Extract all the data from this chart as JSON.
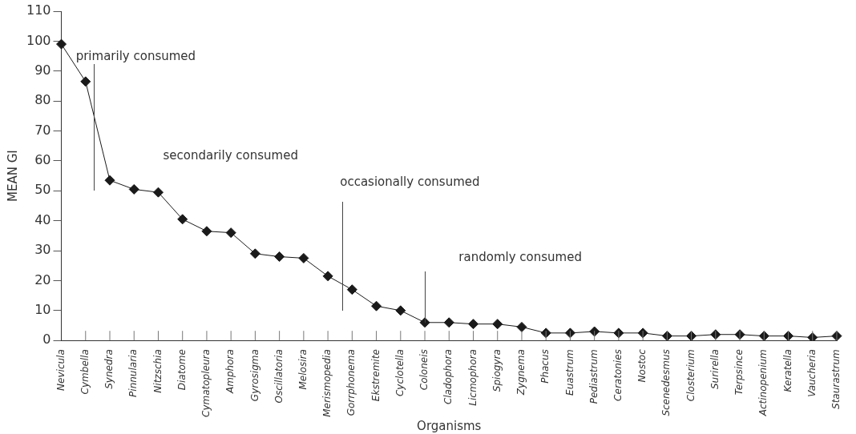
{
  "chart_data": {
    "type": "line",
    "xlabel": "Organisms",
    "ylabel": "MEAN GI",
    "categories": [
      "Nevicula",
      "Cymbella",
      "Synedra",
      "Pinnularia",
      "Nitzschia",
      "Diatome",
      "Cymatopleura",
      "Amphora",
      "Gyrosigma",
      "Oscillatoria",
      "Melosira",
      "Merismopedia",
      "Gorrphonema",
      "Ekstremite",
      "Cyclotella",
      "Coloneis",
      "Cladophora",
      "Licmophora",
      "Spiogyra",
      "Zygnema",
      "Phacus",
      "Euastrum",
      "Pediastrum",
      "Ceratonies",
      "Nostoc",
      "Scenedesmus",
      "Closterium",
      "Surirella",
      "Terpsince",
      "Actinopenium",
      "Keratella",
      "Vaucheria",
      "Staurastrum"
    ],
    "values": [
      99,
      86.5,
      53.5,
      50.5,
      49.5,
      40.5,
      36.5,
      36,
      29,
      28,
      27.5,
      21.5,
      17,
      11.5,
      10,
      6,
      6,
      5.5,
      5.5,
      4.5,
      2.5,
      2.5,
      3,
      2.5,
      2.5,
      1.5,
      1.5,
      2,
      2,
      1.5,
      1.5,
      1,
      1.5
    ],
    "color": "#1a1a1a",
    "marker": "diamond",
    "line_style": "solid",
    "ylim": [
      0,
      110
    ],
    "yticks": [
      0,
      10,
      20,
      30,
      40,
      50,
      60,
      70,
      80,
      90,
      100,
      110
    ],
    "grid": false,
    "legend": false,
    "annotations": [
      "primarily consumed",
      "secondarily consumed",
      "occasionally consumed",
      "randomly consumed"
    ]
  }
}
